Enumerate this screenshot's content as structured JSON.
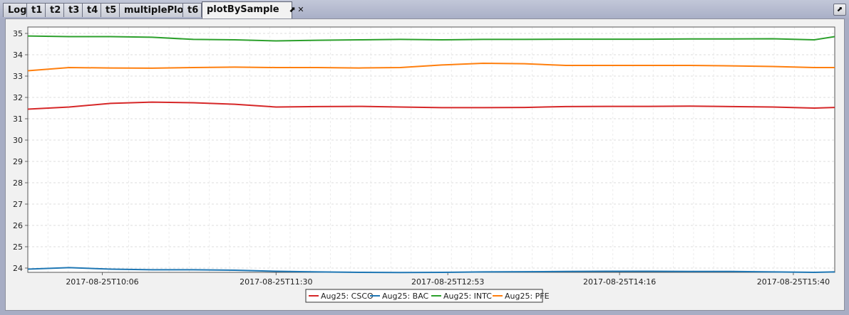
{
  "tabs": [
    {
      "label": "Log"
    },
    {
      "label": "t1"
    },
    {
      "label": "t2"
    },
    {
      "label": "t3"
    },
    {
      "label": "t4"
    },
    {
      "label": "t5"
    },
    {
      "label": "multiplePlot"
    },
    {
      "label": "t6"
    },
    {
      "label": "plotBySample",
      "active": true
    }
  ],
  "icons": {
    "tab_popout": "popout-icon",
    "tab_close": "close-icon",
    "corner": "popout-icon"
  },
  "chart_data": {
    "type": "line",
    "title": "",
    "xlabel": "",
    "ylabel": "",
    "ylim": [
      23.8,
      35.3
    ],
    "yticks": [
      24,
      25,
      26,
      27,
      28,
      29,
      30,
      31,
      32,
      33,
      34,
      35
    ],
    "xlim": [
      "2017-08-25T09:30",
      "2017-08-25T16:00"
    ],
    "xticks": [
      "2017-08-25T10:06",
      "2017-08-25T11:30",
      "2017-08-25T12:53",
      "2017-08-25T14:16",
      "2017-08-25T15:40"
    ],
    "grid": true,
    "legend": "bottom-center",
    "x": [
      "2017-08-25T09:30",
      "2017-08-25T09:50",
      "2017-08-25T10:10",
      "2017-08-25T10:30",
      "2017-08-25T10:50",
      "2017-08-25T11:10",
      "2017-08-25T11:30",
      "2017-08-25T11:50",
      "2017-08-25T12:10",
      "2017-08-25T12:30",
      "2017-08-25T12:50",
      "2017-08-25T13:10",
      "2017-08-25T13:30",
      "2017-08-25T13:50",
      "2017-08-25T14:10",
      "2017-08-25T14:30",
      "2017-08-25T14:50",
      "2017-08-25T15:10",
      "2017-08-25T15:30",
      "2017-08-25T15:50",
      "2017-08-25T16:00"
    ],
    "series": [
      {
        "name": "Aug25: CSCO",
        "color": "#d62728",
        "values": [
          31.45,
          31.55,
          31.72,
          31.78,
          31.75,
          31.68,
          31.55,
          31.57,
          31.58,
          31.55,
          31.52,
          31.52,
          31.53,
          31.57,
          31.58,
          31.58,
          31.59,
          31.57,
          31.55,
          31.5,
          31.53
        ]
      },
      {
        "name": "Aug25: BAC",
        "color": "#1f77b4",
        "values": [
          23.95,
          24.02,
          23.95,
          23.92,
          23.92,
          23.9,
          23.85,
          23.82,
          23.8,
          23.79,
          23.8,
          23.82,
          23.83,
          23.84,
          23.85,
          23.85,
          23.84,
          23.84,
          23.82,
          23.8,
          23.82
        ]
      },
      {
        "name": "Aug25: INTC",
        "color": "#2ca02c",
        "values": [
          34.88,
          34.85,
          34.85,
          34.82,
          34.72,
          34.7,
          34.65,
          34.68,
          34.7,
          34.72,
          34.7,
          34.72,
          34.72,
          34.73,
          34.73,
          34.73,
          34.74,
          34.74,
          34.75,
          34.7,
          34.85
        ]
      },
      {
        "name": "Aug25: PFE",
        "color": "#ff7f0e",
        "values": [
          33.25,
          33.4,
          33.38,
          33.37,
          33.4,
          33.42,
          33.4,
          33.4,
          33.38,
          33.4,
          33.52,
          33.6,
          33.58,
          33.5,
          33.5,
          33.5,
          33.5,
          33.48,
          33.45,
          33.4,
          33.4
        ]
      }
    ]
  }
}
